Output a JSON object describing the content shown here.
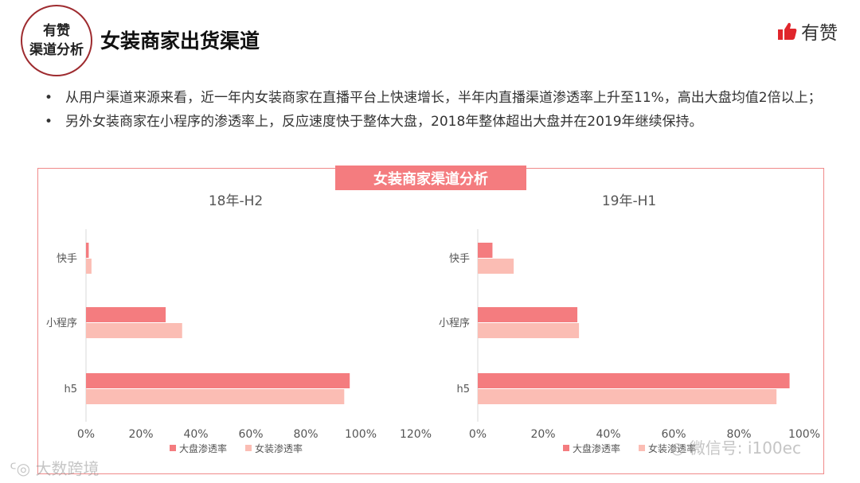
{
  "header": {
    "badge_line1": "有赞",
    "badge_line2": "渠道分析",
    "title": "女装商家出货渠道",
    "logo_text": "有赞"
  },
  "bullets": [
    "从用户渠道来源来看，近一年内女装商家在直播平台上快速增长，半年内直播渠道渗透率上升至11%，高出大盘均值2倍以上；",
    "另外女装商家在小程序的渗透率上，反应速度快于整体大盘，2018年整体超出大盘并在2019年继续保持。"
  ],
  "bullet_marker": "•",
  "panel_title": "女装商家渠道分析",
  "colors": {
    "series_market": "#f47c7f",
    "series_women": "#fbbdb4",
    "frame": "#f08a8a"
  },
  "chart_data": [
    {
      "type": "bar",
      "orientation": "horizontal",
      "title": "18年-H2",
      "categories": [
        "快手",
        "小程序",
        "h5"
      ],
      "series": [
        {
          "name": "大盘渗透率",
          "values": [
            1,
            29,
            96
          ]
        },
        {
          "name": "女装渗透率",
          "values": [
            2,
            35,
            94
          ]
        }
      ],
      "xlim": [
        0,
        120
      ],
      "xticks": [
        "0%",
        "20%",
        "40%",
        "60%",
        "80%",
        "100%",
        "120%"
      ],
      "legend": "bottom"
    },
    {
      "type": "bar",
      "orientation": "horizontal",
      "title": "19年-H1",
      "categories": [
        "快手",
        "小程序",
        "h5"
      ],
      "series": [
        {
          "name": "大盘渗透率",
          "values": [
            4.5,
            30.5,
            95.5
          ]
        },
        {
          "name": "女装渗透率",
          "values": [
            11,
            31,
            91.5
          ]
        }
      ],
      "xlim": [
        0,
        100
      ],
      "xticks": [
        "0%",
        "20%",
        "40%",
        "60%",
        "80%",
        "100%"
      ],
      "legend": "bottom"
    }
  ],
  "watermarks": {
    "bottom_left": "大数跨境",
    "bottom_right": "微信号: i100ec"
  }
}
